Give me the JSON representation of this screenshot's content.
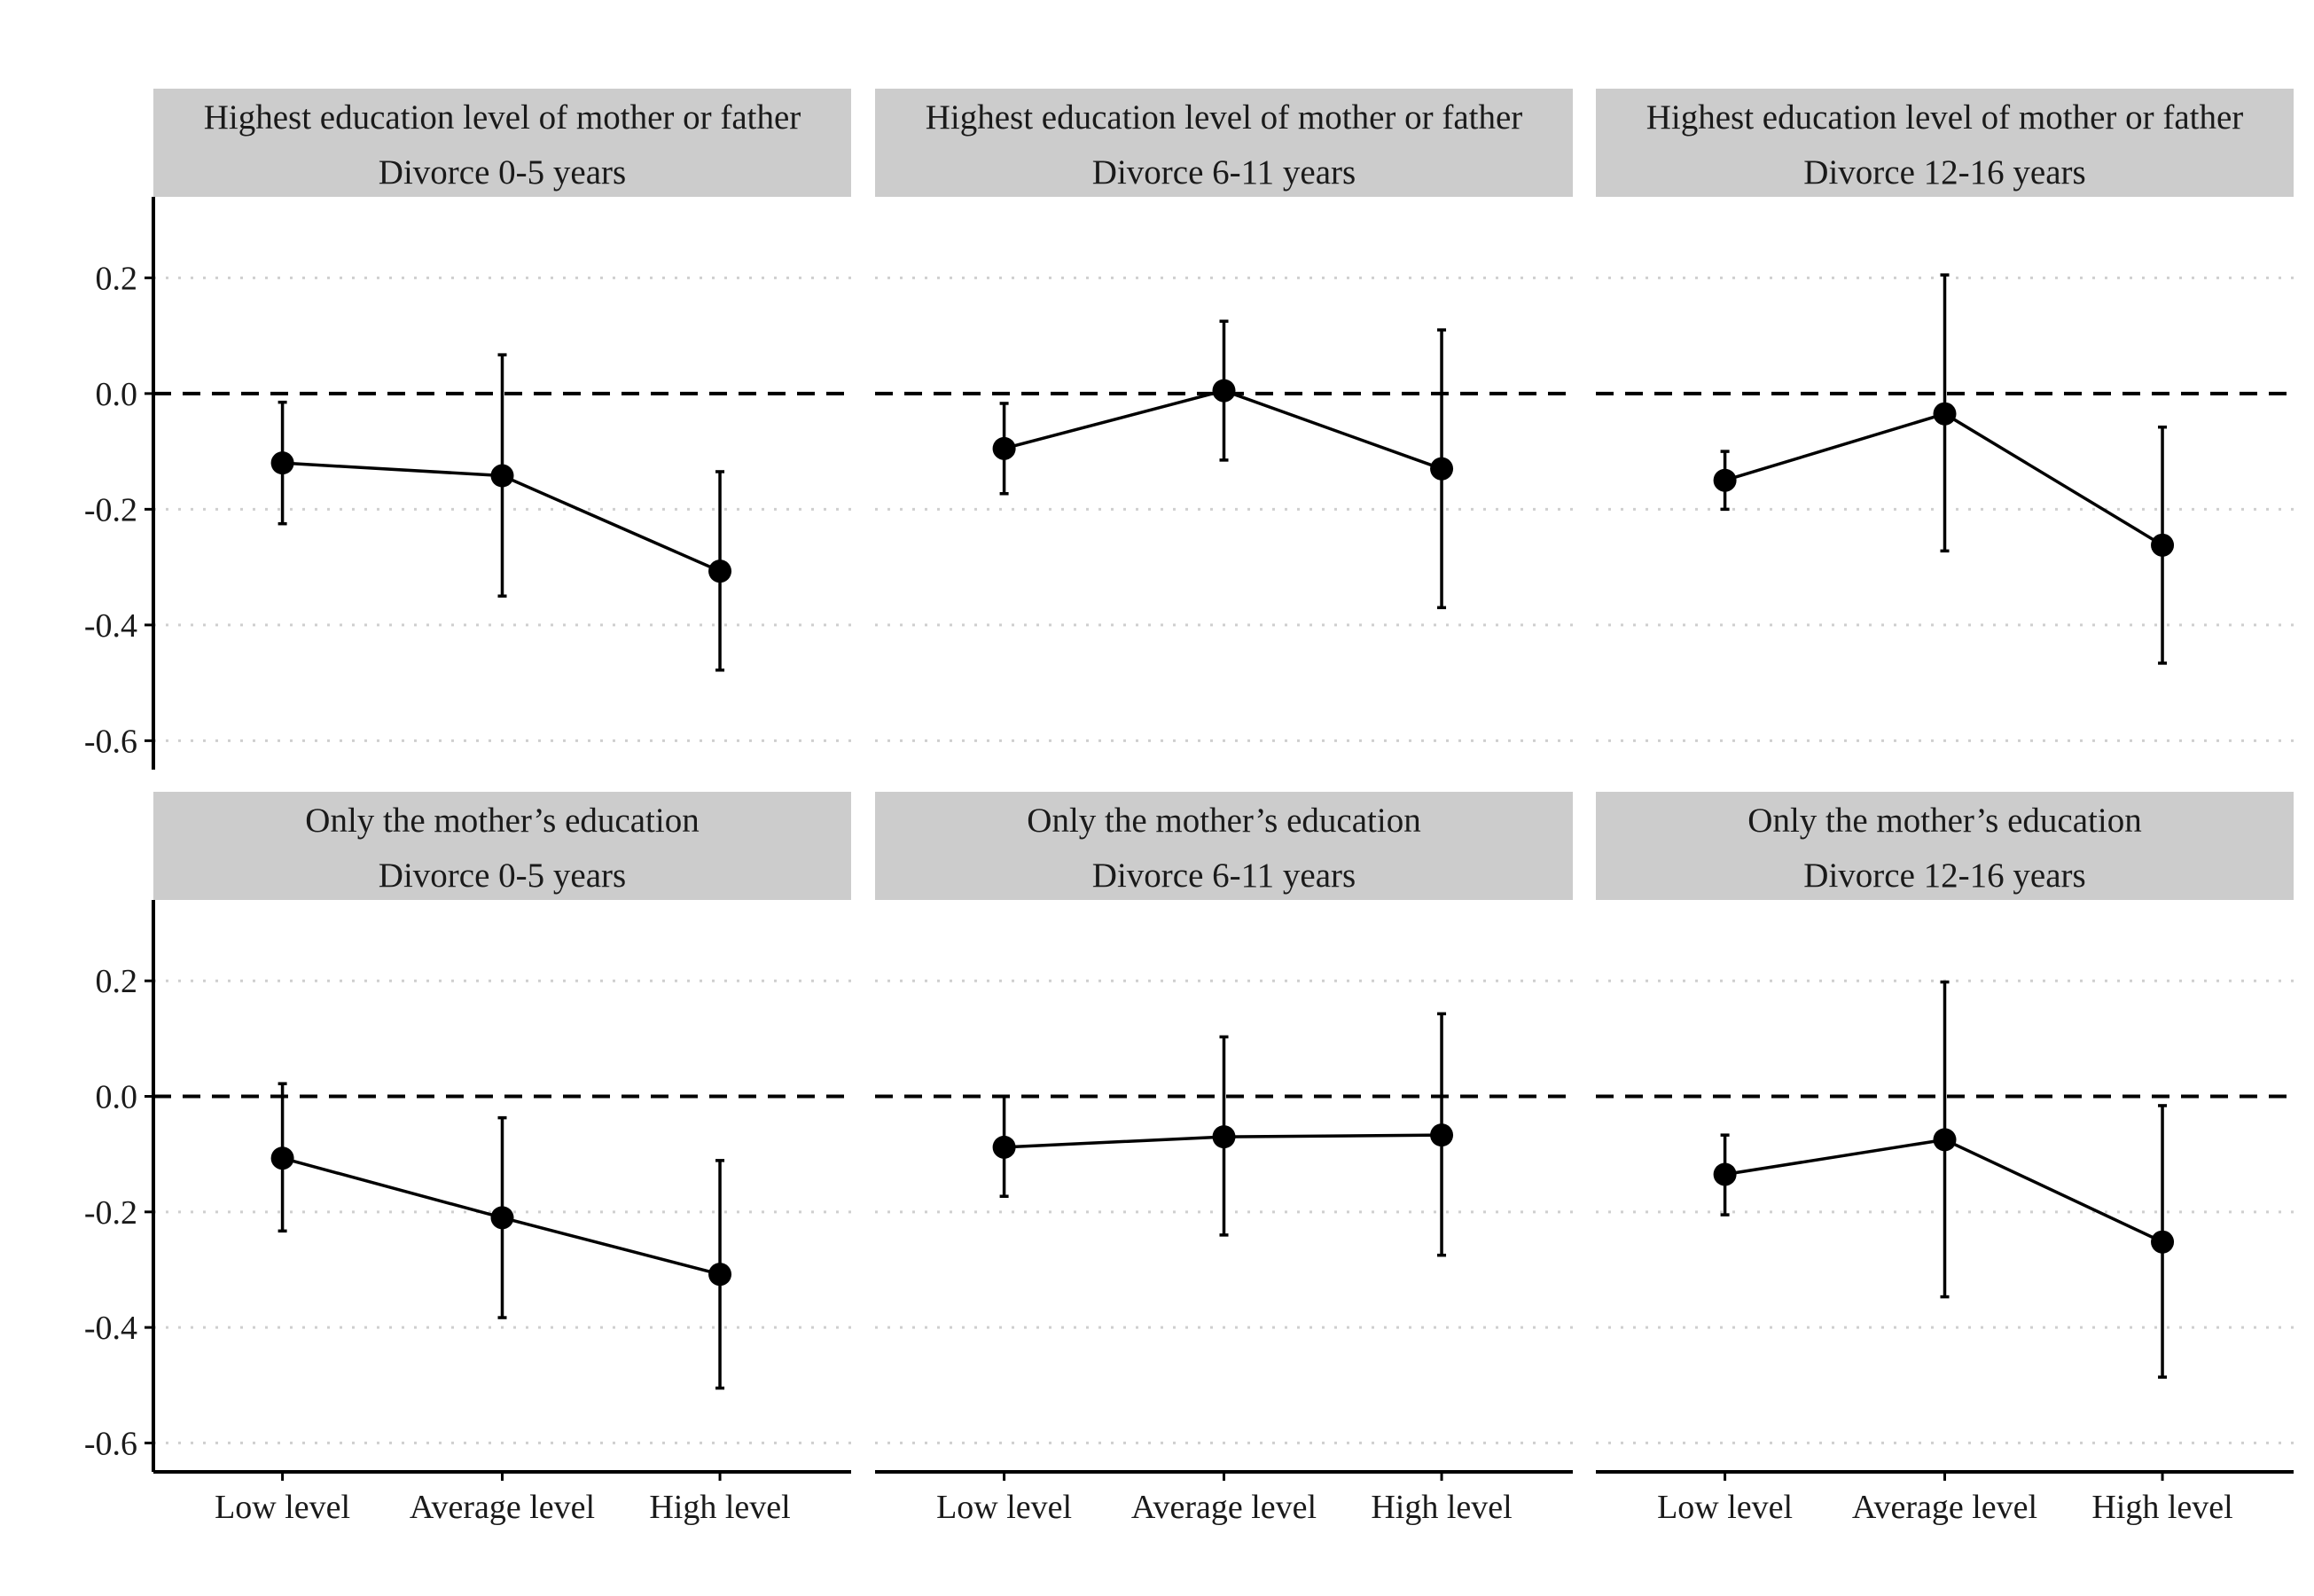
{
  "chart_data": {
    "type": "line",
    "y_ticks": [
      "0.2",
      "0.0",
      "-0.2",
      "-0.4",
      "-0.6"
    ],
    "y_tick_values": [
      0.2,
      0.0,
      -0.2,
      -0.4,
      -0.6
    ],
    "ylim": [
      -0.65,
      0.34
    ],
    "categories": [
      "Low level",
      "Average level",
      "High level"
    ],
    "reference_line": 0.0,
    "grid": "horizontal dotted",
    "panels": [
      {
        "title_line1": "Highest education level of mother or father",
        "title_line2": "Divorce 0-5 years",
        "values": [
          -0.12,
          -0.142,
          -0.307
        ],
        "lower": [
          -0.225,
          -0.35,
          -0.478
        ],
        "upper": [
          -0.015,
          0.067,
          -0.135
        ]
      },
      {
        "title_line1": "Highest education level of mother or father",
        "title_line2": "Divorce 6-11 years",
        "values": [
          -0.095,
          0.005,
          -0.13
        ],
        "lower": [
          -0.173,
          -0.115,
          -0.37
        ],
        "upper": [
          -0.017,
          0.125,
          0.11
        ]
      },
      {
        "title_line1": "Highest education level of mother or father",
        "title_line2": "Divorce 12-16 years",
        "values": [
          -0.15,
          -0.035,
          -0.262
        ],
        "lower": [
          -0.2,
          -0.272,
          -0.466
        ],
        "upper": [
          -0.1,
          0.205,
          -0.058
        ]
      },
      {
        "title_line1": "Only the mother’s education",
        "title_line2": "Divorce 0-5 years",
        "values": [
          -0.107,
          -0.21,
          -0.308
        ],
        "lower": [
          -0.233,
          -0.383,
          -0.505
        ],
        "upper": [
          0.022,
          -0.037,
          -0.111
        ]
      },
      {
        "title_line1": "Only the mother’s education",
        "title_line2": "Divorce 6-11 years",
        "values": [
          -0.088,
          -0.07,
          -0.067
        ],
        "lower": [
          -0.173,
          -0.24,
          -0.275
        ],
        "upper": [
          0.0,
          0.103,
          0.143
        ]
      },
      {
        "title_line1": "Only the mother’s education",
        "title_line2": "Divorce 12-16 years",
        "values": [
          -0.135,
          -0.075,
          -0.252
        ],
        "lower": [
          -0.205,
          -0.347,
          -0.486
        ],
        "upper": [
          -0.067,
          0.198,
          -0.016
        ]
      }
    ]
  }
}
